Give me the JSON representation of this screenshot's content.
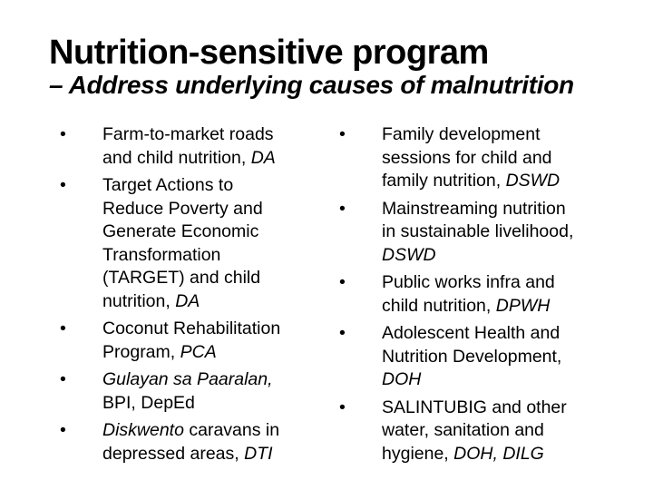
{
  "header": {
    "title": "Nutrition-sensitive program",
    "subtitle": "– Address underlying causes of malnutrition"
  },
  "bullet_glyph": "•",
  "colors": {
    "background": "#ffffff",
    "text": "#000000"
  },
  "columns": {
    "left": {
      "items": [
        {
          "segments": [
            {
              "t": "Farm-to-market roads\nand child nutrition, "
            },
            {
              "t": "DA",
              "i": true
            }
          ]
        },
        {
          "segments": [
            {
              "t": "Target Actions to\nReduce Poverty and\nGenerate Economic\nTransformation\n(TARGET) and child\nnutrition, "
            },
            {
              "t": "DA",
              "i": true
            }
          ]
        },
        {
          "segments": [
            {
              "t": "Coconut Rehabilitation\nProgram, "
            },
            {
              "t": "PCA",
              "i": true
            }
          ]
        },
        {
          "segments": [
            {
              "t": "Gulayan sa Paaralan,",
              "i": true
            },
            {
              "t": "\nBPI, DepEd"
            }
          ]
        },
        {
          "segments": [
            {
              "t": "Diskwento",
              "i": true
            },
            {
              "t": " caravans in\ndepressed areas, "
            },
            {
              "t": "DTI",
              "i": true
            }
          ]
        }
      ]
    },
    "right": {
      "items": [
        {
          "segments": [
            {
              "t": "Family development\nsessions for child and\nfamily nutrition, "
            },
            {
              "t": "DSWD",
              "i": true
            }
          ]
        },
        {
          "segments": [
            {
              "t": "Mainstreaming nutrition\nin sustainable livelihood,\n"
            },
            {
              "t": "DSWD",
              "i": true
            }
          ]
        },
        {
          "segments": [
            {
              "t": "Public works infra and\nchild nutrition, "
            },
            {
              "t": "DPWH",
              "i": true
            }
          ]
        },
        {
          "segments": [
            {
              "t": "Adolescent Health and\nNutrition Development,\n"
            },
            {
              "t": "DOH",
              "i": true
            }
          ]
        },
        {
          "segments": [
            {
              "t": "SALINTUBIG and other\nwater, sanitation and\nhygiene, "
            },
            {
              "t": "DOH, DILG",
              "i": true
            }
          ]
        }
      ]
    }
  }
}
